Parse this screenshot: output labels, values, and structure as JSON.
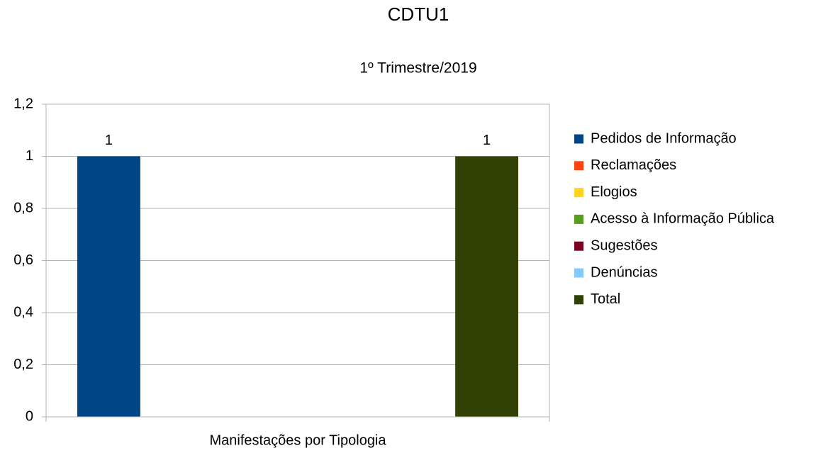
{
  "chart_data": {
    "type": "bar",
    "title": "CDTU1",
    "subtitle": "1º Trimestre/2019",
    "categories": [
      "Manifestações por Tipologia"
    ],
    "series": [
      {
        "name": "Pedidos de Informação",
        "color": "#004586",
        "values": [
          1
        ]
      },
      {
        "name": "Reclamações",
        "color": "#ff420e",
        "values": [
          null
        ]
      },
      {
        "name": "Elogios",
        "color": "#ffd320",
        "values": [
          null
        ]
      },
      {
        "name": "Acesso à Informação Pública",
        "color": "#579d1c",
        "values": [
          null
        ]
      },
      {
        "name": "Sugestões",
        "color": "#7e0021",
        "values": [
          null
        ]
      },
      {
        "name": "Denúncias",
        "color": "#83caff",
        "values": [
          null
        ]
      },
      {
        "name": "Total",
        "color": "#314004",
        "values": [
          1
        ]
      }
    ],
    "ylim": [
      0,
      1.2
    ],
    "yticks": [
      0,
      {
        "value": 0.2,
        "label": "0,2"
      },
      {
        "value": 0.4,
        "label": "0,4"
      },
      {
        "value": 0.6,
        "label": "0,6"
      },
      {
        "value": 0.8,
        "label": "0,8"
      },
      1,
      {
        "value": 1.2,
        "label": "1,2"
      }
    ],
    "grid": true,
    "legend": "right"
  }
}
